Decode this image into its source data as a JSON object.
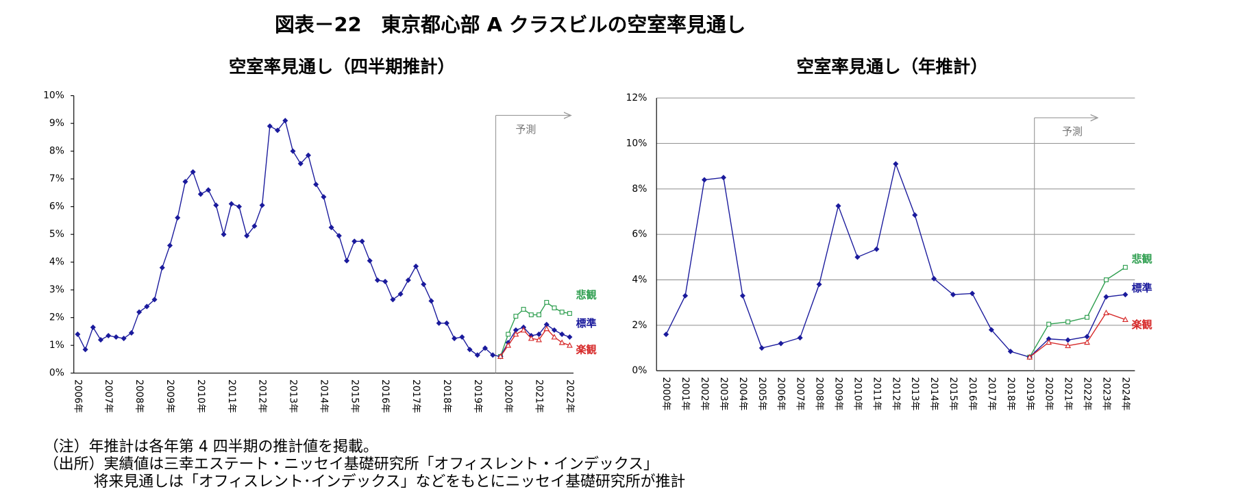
{
  "title": "図表－22　東京都心部 A クラスビルの空室率見通し",
  "notes": [
    "（注）年推計は各年第 4 四半期の推計値を掲載。",
    "（出所）実績値は三幸エステート・ニッセイ基礎研究所「オフィスレント・インデックス」",
    "将来見通しは「オフィスレント･インデックス」などをもとにニッセイ基礎研究所が推計"
  ],
  "chart_data": [
    {
      "type": "line",
      "title": "空室率見通し（四半期推計）",
      "annotation": "予測",
      "grid": false,
      "categories": [
        "2006年",
        null,
        null,
        null,
        "2007年",
        null,
        null,
        null,
        "2008年",
        null,
        null,
        null,
        "2009年",
        null,
        null,
        null,
        "2010年",
        null,
        null,
        null,
        "2011年",
        null,
        null,
        null,
        "2012年",
        null,
        null,
        null,
        "2013年",
        null,
        null,
        null,
        "2014年",
        null,
        null,
        null,
        "2015年",
        null,
        null,
        null,
        "2016年",
        null,
        null,
        null,
        "2017年",
        null,
        null,
        null,
        "2018年",
        null,
        null,
        null,
        "2019年",
        null,
        null,
        null,
        "2020年",
        null,
        null,
        null,
        "2021年",
        null,
        null,
        null,
        "2022年"
      ],
      "ylim": [
        0,
        10
      ],
      "yticks": [
        {
          "value": 0,
          "label": "0%"
        },
        {
          "value": 1,
          "label": "1%"
        },
        {
          "value": 2,
          "label": "2%"
        },
        {
          "value": 3,
          "label": "3%"
        },
        {
          "value": 4,
          "label": "4%"
        },
        {
          "value": 5,
          "label": "5%"
        },
        {
          "value": 6,
          "label": "6%"
        },
        {
          "value": 7,
          "label": "7%"
        },
        {
          "value": 8,
          "label": "8%"
        },
        {
          "value": 9,
          "label": "9%"
        },
        {
          "value": 10,
          "label": "10%"
        }
      ],
      "series": [
        {
          "color": "#1a1a9c",
          "marker": "diamond",
          "values": [
            1.4,
            0.85,
            1.65,
            1.2,
            1.35,
            1.3,
            1.25,
            1.45,
            2.2,
            2.4,
            2.65,
            3.8,
            4.6,
            5.6,
            6.9,
            7.25,
            6.45,
            6.6,
            6.05,
            5.0,
            6.1,
            6.0,
            4.95,
            5.3,
            6.05,
            8.9,
            8.75,
            9.1,
            8.0,
            7.55,
            7.85,
            6.8,
            6.35,
            5.25,
            4.95,
            4.05,
            4.75,
            4.75,
            4.05,
            3.35,
            3.3,
            2.65,
            2.85,
            3.35,
            3.85,
            3.2,
            2.6,
            1.8,
            1.8,
            1.25,
            1.3,
            0.85,
            0.65,
            0.9,
            0.65,
            0.6,
            null,
            null,
            null,
            null,
            null,
            null,
            null,
            null,
            null
          ]
        },
        {
          "name": "悲観",
          "color": "#2e9e4f",
          "marker": "square-open",
          "values": [
            null,
            null,
            null,
            null,
            null,
            null,
            null,
            null,
            null,
            null,
            null,
            null,
            null,
            null,
            null,
            null,
            null,
            null,
            null,
            null,
            null,
            null,
            null,
            null,
            null,
            null,
            null,
            null,
            null,
            null,
            null,
            null,
            null,
            null,
            null,
            null,
            null,
            null,
            null,
            null,
            null,
            null,
            null,
            null,
            null,
            null,
            null,
            null,
            null,
            null,
            null,
            null,
            null,
            null,
            null,
            0.6,
            1.4,
            2.05,
            2.3,
            2.1,
            2.1,
            2.55,
            2.35,
            2.2,
            2.15
          ]
        },
        {
          "name": "標準",
          "color": "#1a1a9c",
          "marker": "diamond",
          "values": [
            null,
            null,
            null,
            null,
            null,
            null,
            null,
            null,
            null,
            null,
            null,
            null,
            null,
            null,
            null,
            null,
            null,
            null,
            null,
            null,
            null,
            null,
            null,
            null,
            null,
            null,
            null,
            null,
            null,
            null,
            null,
            null,
            null,
            null,
            null,
            null,
            null,
            null,
            null,
            null,
            null,
            null,
            null,
            null,
            null,
            null,
            null,
            null,
            null,
            null,
            null,
            null,
            null,
            null,
            null,
            0.6,
            1.1,
            1.55,
            1.65,
            1.35,
            1.4,
            1.75,
            1.55,
            1.4,
            1.3
          ]
        },
        {
          "name": "楽観",
          "color": "#d62828",
          "marker": "triangle-open",
          "values": [
            null,
            null,
            null,
            null,
            null,
            null,
            null,
            null,
            null,
            null,
            null,
            null,
            null,
            null,
            null,
            null,
            null,
            null,
            null,
            null,
            null,
            null,
            null,
            null,
            null,
            null,
            null,
            null,
            null,
            null,
            null,
            null,
            null,
            null,
            null,
            null,
            null,
            null,
            null,
            null,
            null,
            null,
            null,
            null,
            null,
            null,
            null,
            null,
            null,
            null,
            null,
            null,
            null,
            null,
            null,
            0.6,
            1.0,
            1.4,
            1.55,
            1.25,
            1.2,
            1.6,
            1.3,
            1.1,
            1.0
          ]
        }
      ]
    },
    {
      "type": "line",
      "title": "空室率見通し（年推計）",
      "annotation": "予測",
      "grid": true,
      "categories": [
        "2000年",
        "2001年",
        "2002年",
        "2003年",
        "2004年",
        "2005年",
        "2006年",
        "2007年",
        "2008年",
        "2009年",
        "2010年",
        "2011年",
        "2012年",
        "2013年",
        "2014年",
        "2015年",
        "2016年",
        "2017年",
        "2018年",
        "2019年",
        "2020年",
        "2021年",
        "2022年",
        "2023年",
        "2024年"
      ],
      "ylim": [
        0,
        12
      ],
      "yticks": [
        {
          "value": 0,
          "label": "0%"
        },
        {
          "value": 2,
          "label": "2%"
        },
        {
          "value": 4,
          "label": "4%"
        },
        {
          "value": 6,
          "label": "6%"
        },
        {
          "value": 8,
          "label": "8%"
        },
        {
          "value": 10,
          "label": "10%"
        },
        {
          "value": 12,
          "label": "12%"
        }
      ],
      "series": [
        {
          "color": "#1a1a9c",
          "marker": "diamond",
          "values": [
            1.6,
            3.3,
            8.4,
            8.5,
            3.3,
            1.0,
            1.2,
            1.45,
            3.8,
            7.25,
            5.0,
            5.35,
            9.1,
            6.85,
            4.05,
            3.35,
            3.4,
            1.8,
            0.85,
            0.6,
            null,
            null,
            null,
            null,
            null
          ]
        },
        {
          "name": "悲観",
          "color": "#2e9e4f",
          "marker": "square-open",
          "values": [
            null,
            null,
            null,
            null,
            null,
            null,
            null,
            null,
            null,
            null,
            null,
            null,
            null,
            null,
            null,
            null,
            null,
            null,
            null,
            0.6,
            2.05,
            2.15,
            2.35,
            4.0,
            4.55
          ]
        },
        {
          "name": "標準",
          "color": "#1a1a9c",
          "marker": "diamond",
          "values": [
            null,
            null,
            null,
            null,
            null,
            null,
            null,
            null,
            null,
            null,
            null,
            null,
            null,
            null,
            null,
            null,
            null,
            null,
            null,
            0.6,
            1.4,
            1.35,
            1.5,
            3.25,
            3.35
          ]
        },
        {
          "name": "楽観",
          "color": "#d62828",
          "marker": "triangle-open",
          "values": [
            null,
            null,
            null,
            null,
            null,
            null,
            null,
            null,
            null,
            null,
            null,
            null,
            null,
            null,
            null,
            null,
            null,
            null,
            null,
            0.6,
            1.25,
            1.1,
            1.25,
            2.55,
            2.25
          ]
        }
      ]
    }
  ]
}
